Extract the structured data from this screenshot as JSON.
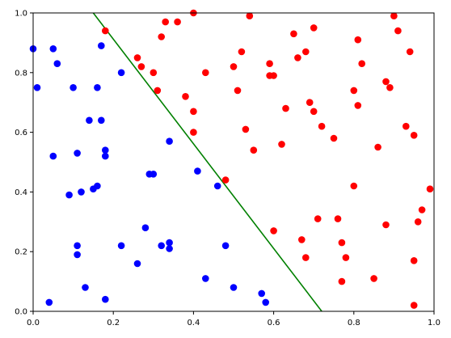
{
  "chart_data": {
    "type": "scatter",
    "title": "",
    "xlabel": "",
    "ylabel": "",
    "xlim": [
      0,
      1
    ],
    "ylim": [
      0,
      1
    ],
    "grid": false,
    "x_ticks": [
      "0.0",
      "0.2",
      "0.4",
      "0.6",
      "0.8",
      "1.0"
    ],
    "y_ticks": [
      "0.0",
      "0.2",
      "0.4",
      "0.6",
      "0.8",
      "1.0"
    ],
    "series": [
      {
        "color": "#0000ff",
        "points": [
          [
            0.0,
            0.88
          ],
          [
            0.01,
            0.75
          ],
          [
            0.05,
            0.52
          ],
          [
            0.05,
            0.88
          ],
          [
            0.06,
            0.83
          ],
          [
            0.04,
            0.03
          ],
          [
            0.09,
            0.39
          ],
          [
            0.1,
            0.75
          ],
          [
            0.11,
            0.53
          ],
          [
            0.11,
            0.22
          ],
          [
            0.11,
            0.19
          ],
          [
            0.12,
            0.4
          ],
          [
            0.13,
            0.08
          ],
          [
            0.14,
            0.64
          ],
          [
            0.15,
            0.41
          ],
          [
            0.16,
            0.42
          ],
          [
            0.16,
            0.75
          ],
          [
            0.17,
            0.64
          ],
          [
            0.17,
            0.89
          ],
          [
            0.18,
            0.54
          ],
          [
            0.18,
            0.52
          ],
          [
            0.18,
            0.04
          ],
          [
            0.22,
            0.8
          ],
          [
            0.22,
            0.22
          ],
          [
            0.26,
            0.16
          ],
          [
            0.28,
            0.28
          ],
          [
            0.29,
            0.46
          ],
          [
            0.3,
            0.46
          ],
          [
            0.32,
            0.22
          ],
          [
            0.34,
            0.23
          ],
          [
            0.34,
            0.21
          ],
          [
            0.34,
            0.57
          ],
          [
            0.41,
            0.47
          ],
          [
            0.43,
            0.11
          ],
          [
            0.46,
            0.42
          ],
          [
            0.48,
            0.22
          ],
          [
            0.5,
            0.08
          ],
          [
            0.57,
            0.06
          ],
          [
            0.58,
            0.03
          ]
        ]
      },
      {
        "color": "#ff0000",
        "points": [
          [
            0.18,
            0.94
          ],
          [
            0.26,
            0.85
          ],
          [
            0.27,
            0.82
          ],
          [
            0.3,
            0.8
          ],
          [
            0.31,
            0.74
          ],
          [
            0.32,
            0.92
          ],
          [
            0.33,
            0.97
          ],
          [
            0.36,
            0.97
          ],
          [
            0.38,
            0.72
          ],
          [
            0.4,
            0.67
          ],
          [
            0.4,
            0.6
          ],
          [
            0.4,
            1.0
          ],
          [
            0.43,
            0.8
          ],
          [
            0.48,
            0.44
          ],
          [
            0.5,
            0.82
          ],
          [
            0.51,
            0.74
          ],
          [
            0.52,
            0.87
          ],
          [
            0.53,
            0.61
          ],
          [
            0.54,
            0.99
          ],
          [
            0.55,
            0.54
          ],
          [
            0.59,
            0.83
          ],
          [
            0.59,
            0.79
          ],
          [
            0.6,
            0.79
          ],
          [
            0.6,
            0.27
          ],
          [
            0.62,
            0.56
          ],
          [
            0.63,
            0.68
          ],
          [
            0.65,
            0.93
          ],
          [
            0.66,
            0.85
          ],
          [
            0.67,
            0.24
          ],
          [
            0.68,
            0.18
          ],
          [
            0.68,
            0.87
          ],
          [
            0.69,
            0.7
          ],
          [
            0.7,
            0.95
          ],
          [
            0.7,
            0.67
          ],
          [
            0.71,
            0.31
          ],
          [
            0.72,
            0.62
          ],
          [
            0.75,
            0.58
          ],
          [
            0.76,
            0.31
          ],
          [
            0.77,
            0.23
          ],
          [
            0.77,
            0.1
          ],
          [
            0.78,
            0.18
          ],
          [
            0.8,
            0.74
          ],
          [
            0.8,
            0.42
          ],
          [
            0.81,
            0.69
          ],
          [
            0.81,
            0.91
          ],
          [
            0.82,
            0.83
          ],
          [
            0.85,
            0.11
          ],
          [
            0.86,
            0.55
          ],
          [
            0.88,
            0.77
          ],
          [
            0.88,
            0.29
          ],
          [
            0.89,
            0.75
          ],
          [
            0.9,
            0.99
          ],
          [
            0.91,
            0.94
          ],
          [
            0.93,
            0.62
          ],
          [
            0.94,
            0.87
          ],
          [
            0.95,
            0.59
          ],
          [
            0.95,
            0.02
          ],
          [
            0.95,
            0.17
          ],
          [
            0.96,
            0.3
          ],
          [
            0.97,
            0.34
          ],
          [
            0.99,
            0.41
          ]
        ]
      }
    ],
    "lines": [
      {
        "color": "#008000",
        "x": [
          0.15,
          0.72
        ],
        "y": [
          1.0,
          0.0
        ]
      }
    ]
  }
}
